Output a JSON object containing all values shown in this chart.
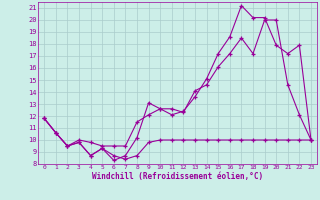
{
  "xlabel": "Windchill (Refroidissement éolien,°C)",
  "ylabel": "",
  "bg_color": "#cceee8",
  "line_color": "#990099",
  "grid_color": "#aacccc",
  "xlim": [
    -0.5,
    23.5
  ],
  "ylim": [
    8,
    21.5
  ],
  "xticks": [
    0,
    1,
    2,
    3,
    4,
    5,
    6,
    7,
    8,
    9,
    10,
    11,
    12,
    13,
    14,
    15,
    16,
    17,
    18,
    19,
    20,
    21,
    22,
    23
  ],
  "yticks": [
    8,
    9,
    10,
    11,
    12,
    13,
    14,
    15,
    16,
    17,
    18,
    19,
    20,
    21
  ],
  "line1_x": [
    0,
    1,
    2,
    3,
    4,
    5,
    6,
    7,
    8,
    9,
    10,
    11,
    12,
    13,
    14,
    15,
    16,
    17,
    18,
    19,
    20,
    21,
    22,
    23
  ],
  "line1_y": [
    11.8,
    10.6,
    9.5,
    9.8,
    8.7,
    9.3,
    8.7,
    8.4,
    8.7,
    9.8,
    10.0,
    10.0,
    10.0,
    10.0,
    10.0,
    10.0,
    10.0,
    10.0,
    10.0,
    10.0,
    10.0,
    10.0,
    10.0,
    10.0
  ],
  "line2_x": [
    0,
    1,
    2,
    3,
    4,
    5,
    6,
    7,
    8,
    9,
    10,
    11,
    12,
    13,
    14,
    15,
    16,
    17,
    18,
    19,
    20,
    21,
    22,
    23
  ],
  "line2_y": [
    11.8,
    10.6,
    9.5,
    9.8,
    8.7,
    9.3,
    8.3,
    8.7,
    10.2,
    13.1,
    12.6,
    12.6,
    12.3,
    14.1,
    14.6,
    16.1,
    17.2,
    18.5,
    17.2,
    20.0,
    20.0,
    14.6,
    12.1,
    10.0
  ],
  "line3_x": [
    0,
    1,
    2,
    3,
    4,
    5,
    6,
    7,
    8,
    9,
    10,
    11,
    12,
    13,
    14,
    15,
    16,
    17,
    18,
    19,
    20,
    21,
    22,
    23
  ],
  "line3_y": [
    11.8,
    10.6,
    9.5,
    10.0,
    9.8,
    9.5,
    9.5,
    9.5,
    11.5,
    12.1,
    12.6,
    12.1,
    12.4,
    13.6,
    15.1,
    17.2,
    18.6,
    21.2,
    20.2,
    20.2,
    17.9,
    17.2,
    17.9,
    10.0
  ]
}
